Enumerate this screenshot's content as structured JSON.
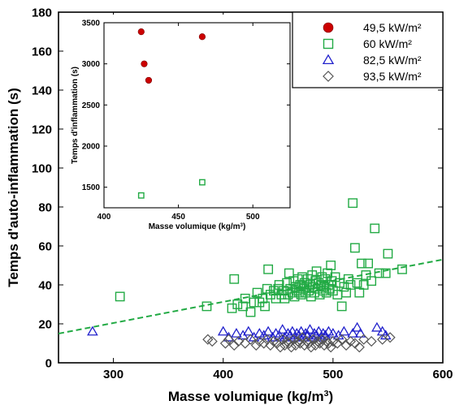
{
  "chart_data": [
    {
      "type": "scatter",
      "xlabel": "Masse volumique (kg/m",
      "xlabel_sup": "3",
      "xlabel_close": ")",
      "ylabel": "Temps d'auto-inflammation (s)",
      "xlim": [
        250,
        600
      ],
      "ylim": [
        0,
        180
      ],
      "xticks": [
        300,
        400,
        500,
        600
      ],
      "yticks": [
        0,
        20,
        40,
        60,
        80,
        100,
        120,
        140,
        160,
        180
      ],
      "grid": false,
      "legend_position": "top-right",
      "series": [
        {
          "name": "49,5 kW/m²",
          "marker": "filled-circle",
          "color": "#cc0000",
          "points": []
        },
        {
          "name": "60 kW/m²",
          "marker": "open-square",
          "color": "#22aa44",
          "points": [
            [
              306,
              34
            ],
            [
              385,
              29
            ],
            [
              408,
              28
            ],
            [
              410,
              43
            ],
            [
              413,
              30
            ],
            [
              418,
              29
            ],
            [
              420,
              33
            ],
            [
              425,
              26
            ],
            [
              428,
              31
            ],
            [
              431,
              36
            ],
            [
              433,
              31
            ],
            [
              436,
              33
            ],
            [
              438,
              29
            ],
            [
              440,
              38
            ],
            [
              441,
              48
            ],
            [
              443,
              35
            ],
            [
              446,
              37
            ],
            [
              448,
              33
            ],
            [
              450,
              38
            ],
            [
              451,
              40
            ],
            [
              453,
              35
            ],
            [
              455,
              37
            ],
            [
              456,
              33
            ],
            [
              458,
              41
            ],
            [
              459,
              35
            ],
            [
              460,
              46
            ],
            [
              461,
              38
            ],
            [
              463,
              36
            ],
            [
              464,
              42
            ],
            [
              465,
              34
            ],
            [
              466,
              39
            ],
            [
              467,
              37
            ],
            [
              468,
              43
            ],
            [
              469,
              36
            ],
            [
              470,
              40
            ],
            [
              471,
              35
            ],
            [
              472,
              44
            ],
            [
              473,
              38
            ],
            [
              474,
              41
            ],
            [
              475,
              36
            ],
            [
              476,
              39
            ],
            [
              477,
              43
            ],
            [
              478,
              37
            ],
            [
              479,
              40
            ],
            [
              480,
              34
            ],
            [
              481,
              45
            ],
            [
              482,
              39
            ],
            [
              483,
              36
            ],
            [
              484,
              42
            ],
            [
              485,
              47
            ],
            [
              486,
              38
            ],
            [
              487,
              41
            ],
            [
              488,
              35
            ],
            [
              489,
              40
            ],
            [
              490,
              44
            ],
            [
              491,
              37
            ],
            [
              492,
              39
            ],
            [
              493,
              43
            ],
            [
              494,
              36
            ],
            [
              495,
              46
            ],
            [
              496,
              40
            ],
            [
              497,
              38
            ],
            [
              498,
              50
            ],
            [
              499,
              42
            ],
            [
              500,
              37
            ],
            [
              502,
              44
            ],
            [
              504,
              35
            ],
            [
              506,
              41
            ],
            [
              508,
              29
            ],
            [
              510,
              39
            ],
            [
              512,
              36
            ],
            [
              514,
              43
            ],
            [
              516,
              40
            ],
            [
              518,
              82
            ],
            [
              520,
              59
            ],
            [
              522,
              41
            ],
            [
              524,
              36
            ],
            [
              526,
              51
            ],
            [
              528,
              40
            ],
            [
              530,
              45
            ],
            [
              532,
              51
            ],
            [
              535,
              42
            ],
            [
              538,
              69
            ],
            [
              542,
              46
            ],
            [
              548,
              46
            ],
            [
              550,
              56
            ],
            [
              563,
              48
            ]
          ]
        },
        {
          "name": "82,5 kW/m²",
          "marker": "open-triangle",
          "color": "#2222cc",
          "points": [
            [
              281,
              16
            ],
            [
              400,
              16
            ],
            [
              405,
              13
            ],
            [
              412,
              15
            ],
            [
              418,
              14
            ],
            [
              423,
              16
            ],
            [
              428,
              13
            ],
            [
              433,
              15
            ],
            [
              437,
              14
            ],
            [
              441,
              16
            ],
            [
              445,
              13
            ],
            [
              448,
              15
            ],
            [
              451,
              14
            ],
            [
              454,
              17
            ],
            [
              456,
              13
            ],
            [
              459,
              15
            ],
            [
              461,
              14
            ],
            [
              463,
              16
            ],
            [
              465,
              13
            ],
            [
              467,
              15
            ],
            [
              469,
              14
            ],
            [
              471,
              16
            ],
            [
              473,
              13
            ],
            [
              475,
              15
            ],
            [
              477,
              14
            ],
            [
              479,
              17
            ],
            [
              481,
              13
            ],
            [
              483,
              15
            ],
            [
              485,
              14
            ],
            [
              487,
              16
            ],
            [
              489,
              13
            ],
            [
              491,
              15
            ],
            [
              493,
              14
            ],
            [
              496,
              16
            ],
            [
              500,
              15
            ],
            [
              505,
              14
            ],
            [
              510,
              16
            ],
            [
              518,
              15
            ],
            [
              522,
              18
            ],
            [
              525,
              15
            ],
            [
              540,
              18
            ],
            [
              545,
              16
            ],
            [
              548,
              14
            ]
          ]
        },
        {
          "name": "93,5 kW/m²",
          "marker": "open-diamond",
          "color": "#555555",
          "points": [
            [
              386,
              12
            ],
            [
              390,
              11
            ],
            [
              402,
              10
            ],
            [
              405,
              12
            ],
            [
              410,
              9
            ],
            [
              414,
              11
            ],
            [
              420,
              10
            ],
            [
              425,
              12
            ],
            [
              430,
              9
            ],
            [
              433,
              11
            ],
            [
              437,
              10
            ],
            [
              440,
              12
            ],
            [
              443,
              9
            ],
            [
              446,
              11
            ],
            [
              449,
              10
            ],
            [
              452,
              8
            ],
            [
              454,
              12
            ],
            [
              456,
              9
            ],
            [
              458,
              11
            ],
            [
              460,
              10
            ],
            [
              462,
              8
            ],
            [
              464,
              12
            ],
            [
              466,
              9
            ],
            [
              468,
              11
            ],
            [
              470,
              10
            ],
            [
              472,
              13
            ],
            [
              474,
              9
            ],
            [
              476,
              11
            ],
            [
              478,
              10
            ],
            [
              480,
              8
            ],
            [
              482,
              12
            ],
            [
              484,
              9
            ],
            [
              486,
              11
            ],
            [
              488,
              10
            ],
            [
              490,
              12
            ],
            [
              492,
              9
            ],
            [
              494,
              11
            ],
            [
              496,
              10
            ],
            [
              498,
              8
            ],
            [
              500,
              11
            ],
            [
              504,
              10
            ],
            [
              508,
              12
            ],
            [
              512,
              9
            ],
            [
              516,
              11
            ],
            [
              520,
              10
            ],
            [
              524,
              8
            ],
            [
              528,
              12
            ],
            [
              535,
              11
            ],
            [
              545,
              12
            ],
            [
              552,
              13
            ]
          ]
        }
      ],
      "trendline": {
        "style": "dashed",
        "color": "#22aa44",
        "points": [
          [
            250,
            15
          ],
          [
            600,
            53
          ]
        ]
      }
    },
    {
      "type": "scatter",
      "subplot": "inset",
      "xlabel": "Masse volumique (kg/m",
      "xlabel_sup": "3",
      "xlabel_close": ")",
      "ylabel": "Temps d'inflammation (s)",
      "xlim": [
        400,
        525
      ],
      "ylim": [
        1250,
        3500
      ],
      "xticks": [
        400,
        450,
        500
      ],
      "yticks": [
        1500,
        2000,
        2500,
        3000,
        3500
      ],
      "series": [
        {
          "name": "49,5 kW/m²",
          "marker": "filled-circle",
          "color": "#cc0000",
          "points": [
            [
              425,
              3390
            ],
            [
              427,
              3000
            ],
            [
              430,
              2800
            ],
            [
              466,
              3330
            ]
          ]
        },
        {
          "name": "60 kW/m²",
          "marker": "open-square",
          "color": "#22aa44",
          "points": [
            [
              425,
              1400
            ],
            [
              466,
              1560
            ]
          ]
        }
      ]
    }
  ]
}
